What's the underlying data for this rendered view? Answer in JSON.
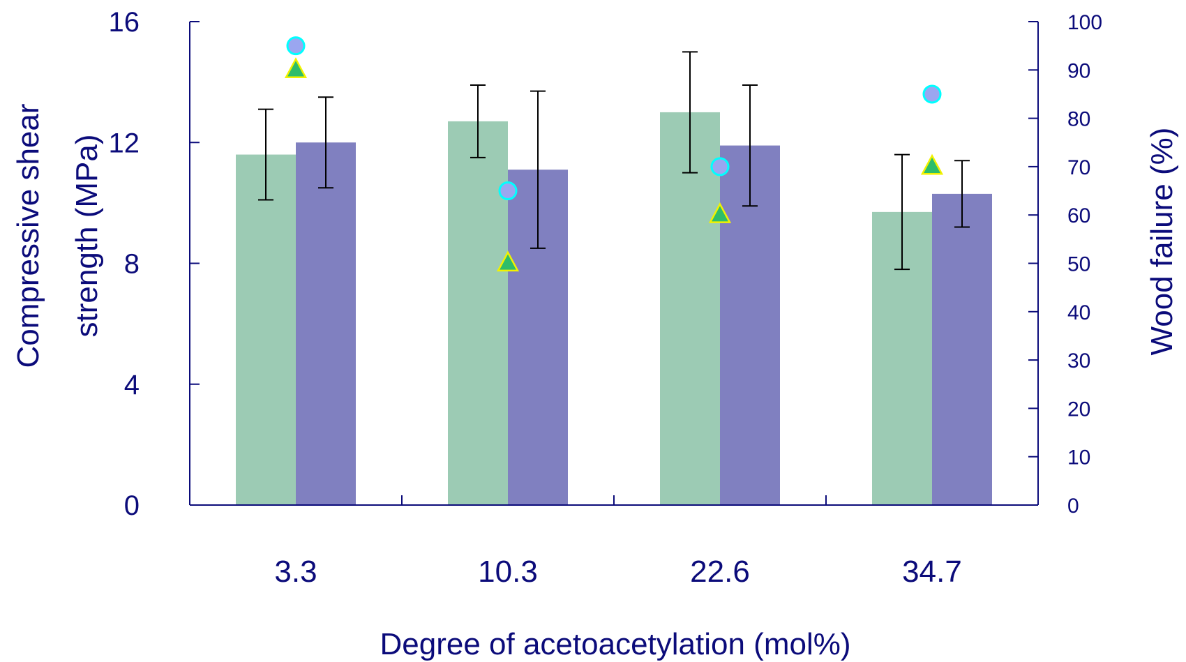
{
  "chart_data": {
    "type": "bar",
    "categories": [
      "3.3",
      "10.3",
      "22.6",
      "34.7"
    ],
    "xlabel": "Degree of acetoacetylation (mol%)",
    "ylabel_lines": [
      "Compressive shear",
      "strength (MPa)"
    ],
    "y2label": "Wood failure (%)",
    "ylim": [
      0,
      16
    ],
    "y2lim": [
      0,
      100
    ],
    "yticks": [
      "0",
      "4",
      "8",
      "12",
      "16"
    ],
    "y2ticks": [
      "0",
      "10",
      "20",
      "30",
      "40",
      "50",
      "60",
      "70",
      "80",
      "90",
      "100"
    ],
    "grid": false,
    "series": [
      {
        "kind": "bar",
        "color": "#9ccbb4",
        "values": [
          11.6,
          12.7,
          13.0,
          9.7
        ],
        "errors": [
          1.5,
          1.2,
          2.0,
          1.9
        ]
      },
      {
        "kind": "bar",
        "color": "#8080c0",
        "values": [
          12.0,
          11.1,
          11.9,
          10.3
        ],
        "errors": [
          1.5,
          2.6,
          2.0,
          1.1
        ]
      },
      {
        "kind": "marker",
        "axis": "y2",
        "marker": "triangle",
        "color": "#2ebd6a",
        "stroke": "#f2f200",
        "values": [
          90,
          50,
          60,
          70
        ]
      },
      {
        "kind": "marker",
        "axis": "y2",
        "marker": "circle",
        "color": "#9aa6f0",
        "stroke": "#00ffff",
        "values": [
          95,
          65,
          70,
          85
        ]
      }
    ]
  }
}
